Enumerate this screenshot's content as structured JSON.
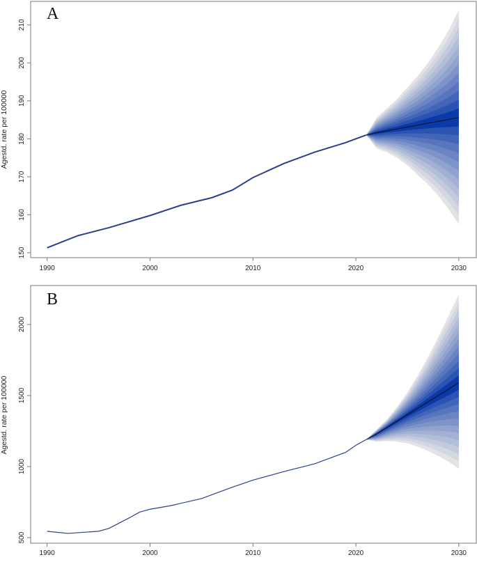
{
  "chart_data": [
    {
      "type": "line",
      "panel_label": "A",
      "xlabel": "",
      "ylabel": "Agestd. rate per 100000",
      "xlim": [
        1988.4,
        2031.7
      ],
      "ylim": [
        148.7,
        216.2
      ],
      "x_ticks": [
        "1990",
        "2000",
        "2010",
        "2020",
        "2030"
      ],
      "y_ticks": [
        "150",
        "160",
        "170",
        "180",
        "190",
        "200",
        "210"
      ],
      "observed": {
        "x": [
          1990,
          1993,
          1996,
          2000,
          2003,
          2006,
          2008,
          2010,
          2013,
          2016,
          2019,
          2021
        ],
        "y": [
          151.3,
          154.5,
          156.6,
          159.8,
          162.5,
          164.5,
          166.5,
          169.8,
          173.5,
          176.5,
          179,
          181
        ]
      },
      "forecast": {
        "x": [
          2021,
          2022,
          2023,
          2024,
          2025,
          2026,
          2027,
          2028,
          2029,
          2030
        ],
        "center": [
          181,
          181.6,
          182.1,
          182.6,
          183.1,
          183.6,
          184.1,
          184.6,
          185.1,
          185.6
        ],
        "upper": [
          181,
          185.5,
          188,
          190.5,
          193.5,
          196.5,
          200,
          204,
          208.5,
          214
        ],
        "lower": [
          181,
          177.5,
          176.5,
          175,
          173,
          170.5,
          168,
          165,
          161.5,
          157.5
        ]
      }
    },
    {
      "type": "line",
      "panel_label": "B",
      "xlabel": "",
      "ylabel": "Agestd. rate per 100000",
      "xlim": [
        1988.4,
        2031.7
      ],
      "ylim": [
        461,
        2274
      ],
      "x_ticks": [
        "1990",
        "2000",
        "2010",
        "2020",
        "2030"
      ],
      "y_ticks": [
        "500",
        "1000",
        "1500",
        "2000"
      ],
      "observed": {
        "x": [
          1990,
          1992,
          1995,
          1996,
          1998,
          1999,
          2000,
          2002,
          2005,
          2008,
          2010,
          2013,
          2016,
          2019,
          2020,
          2021
        ],
        "y": [
          545,
          530,
          545,
          565,
          640,
          680,
          700,
          725,
          775,
          855,
          905,
          965,
          1020,
          1100,
          1150,
          1190
        ]
      },
      "forecast": {
        "x": [
          2021,
          2022,
          2023,
          2024,
          2025,
          2026,
          2027,
          2028,
          2029,
          2030
        ],
        "center": [
          1190,
          1230,
          1275,
          1320,
          1365,
          1410,
          1455,
          1500,
          1545,
          1590
        ],
        "upper": [
          1190,
          1260,
          1330,
          1420,
          1520,
          1640,
          1770,
          1910,
          2060,
          2210
        ],
        "lower": [
          1190,
          1175,
          1180,
          1175,
          1165,
          1140,
          1110,
          1075,
          1035,
          985
        ]
      }
    }
  ],
  "colors": {
    "line": "#2a3f8f",
    "fan_light": "#e3e3e6",
    "fan_dark": "#0b3aa8",
    "center": "#111111"
  }
}
